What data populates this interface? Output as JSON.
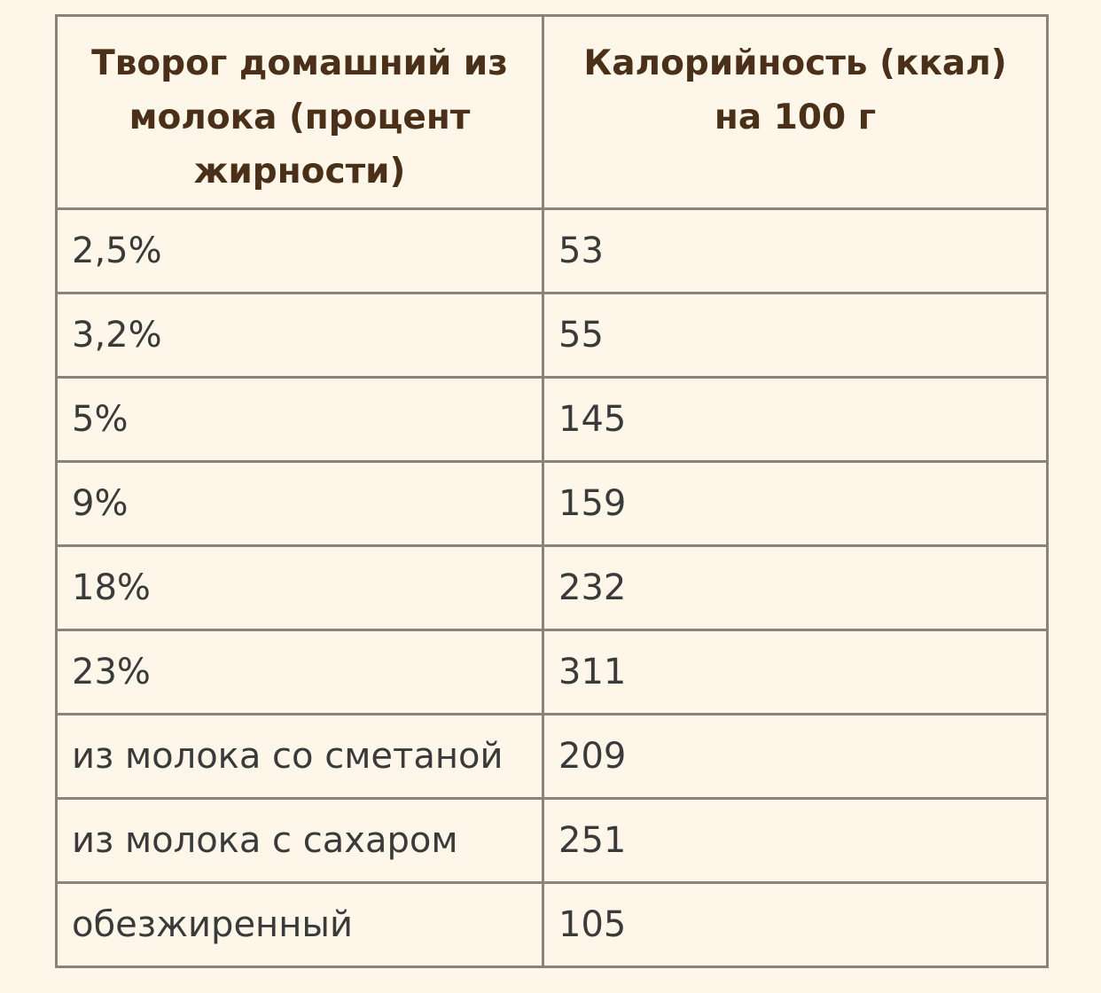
{
  "table": {
    "headers": [
      "Творог домашний из молока (процент жирности)",
      "Калорийность (ккал) на 100 г"
    ],
    "rows": [
      [
        "2,5%",
        "53"
      ],
      [
        "3,2%",
        "55"
      ],
      [
        "5%",
        "145"
      ],
      [
        "9%",
        "159"
      ],
      [
        "18%",
        "232"
      ],
      [
        "23%",
        "311"
      ],
      [
        "из молока со сметаной",
        "209"
      ],
      [
        "из молока с сахаром",
        "251"
      ],
      [
        "обезжиренный",
        "105"
      ]
    ]
  },
  "colors": {
    "background": "#fdf6e9",
    "border": "#8a8478",
    "header_text": "#4a3018",
    "cell_text": "#3a3a3a"
  }
}
